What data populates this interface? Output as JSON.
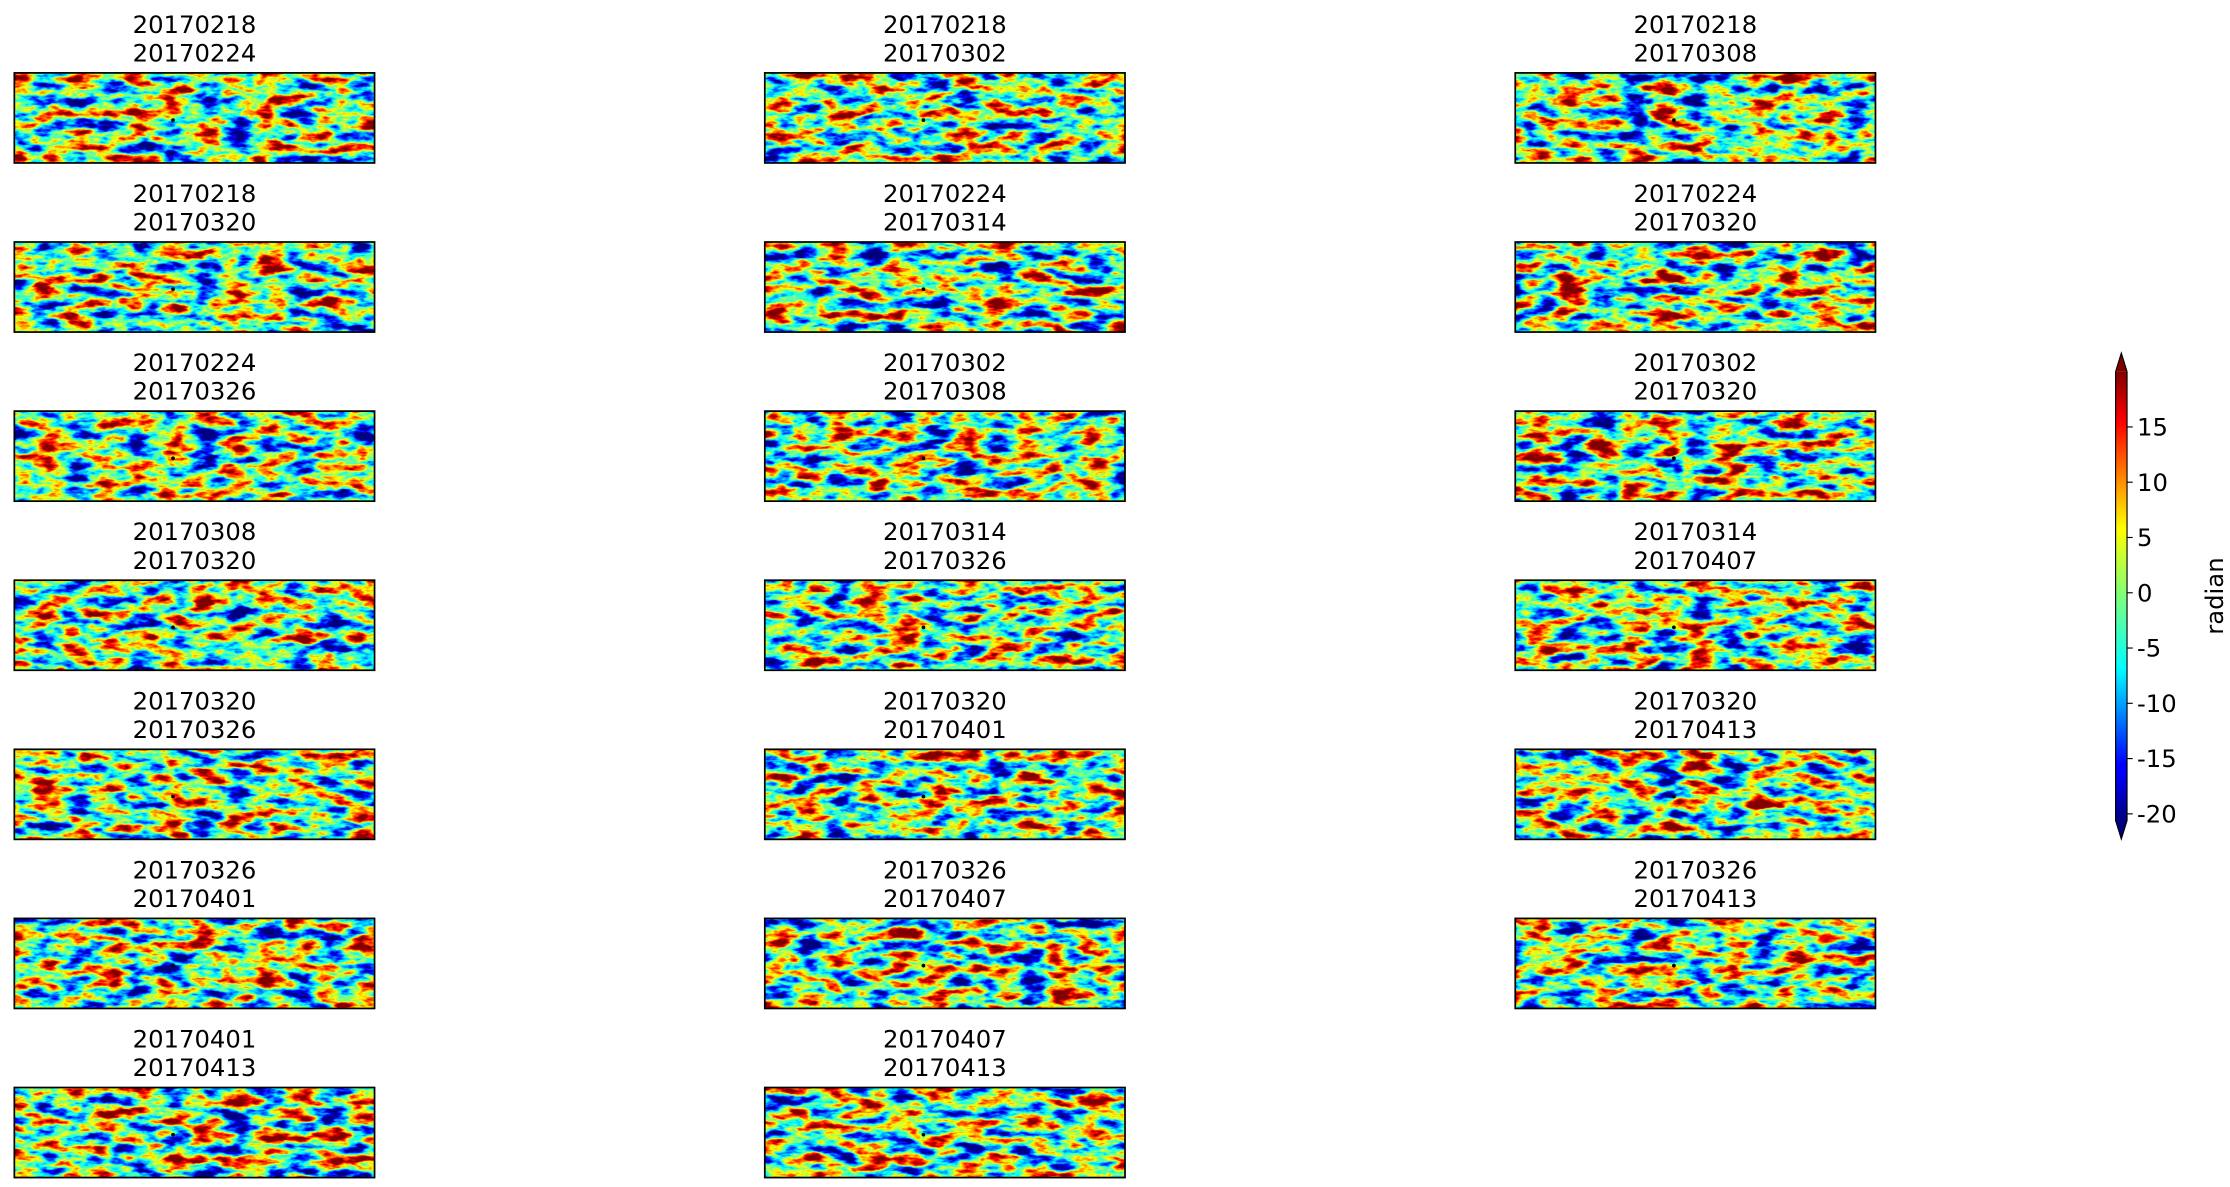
{
  "chart_data": {
    "type": "image-grid",
    "panels": [
      [
        "20170218",
        "20170224"
      ],
      [
        "20170218",
        "20170302"
      ],
      [
        "20170218",
        "20170308"
      ],
      [
        "20170218",
        "20170320"
      ],
      [
        "20170224",
        "20170314"
      ],
      [
        "20170224",
        "20170320"
      ],
      [
        "20170224",
        "20170326"
      ],
      [
        "20170302",
        "20170308"
      ],
      [
        "20170302",
        "20170320"
      ],
      [
        "20170308",
        "20170320"
      ],
      [
        "20170314",
        "20170326"
      ],
      [
        "20170314",
        "20170407"
      ],
      [
        "20170320",
        "20170326"
      ],
      [
        "20170320",
        "20170401"
      ],
      [
        "20170320",
        "20170413"
      ],
      [
        "20170326",
        "20170401"
      ],
      [
        "20170326",
        "20170407"
      ],
      [
        "20170326",
        "20170413"
      ],
      [
        "20170401",
        "20170413"
      ],
      [
        "20170407",
        "20170413"
      ]
    ],
    "colorbar": {
      "label": "radian",
      "colormap": "jet",
      "ylim": [
        -20.6,
        20
      ],
      "yticks": [
        -20,
        -15,
        -10,
        -5,
        0,
        5,
        10,
        15
      ]
    }
  }
}
